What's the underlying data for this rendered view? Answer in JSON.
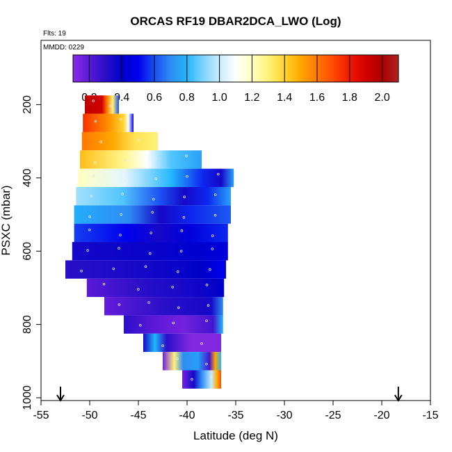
{
  "chart_data": {
    "type": "heatmap",
    "title": "ORCAS RF19 DBAR2DCA_LWO (Log)",
    "flights_label": "Flts: 19",
    "date_label": "MMDD: 0229",
    "xlabel": "Latitude (deg N)",
    "ylabel": "PSXC (mbar)",
    "xlim": [
      -55,
      -15
    ],
    "ylim": [
      1000,
      0
    ],
    "xticks": [
      -55,
      -50,
      -45,
      -40,
      -35,
      -30,
      -25,
      -20,
      -15
    ],
    "yticks": [
      200,
      400,
      600,
      800,
      1000
    ],
    "colorbar": {
      "vmin": 0.1,
      "vmax": 2.1,
      "ticks": [
        0.2,
        0.4,
        0.6,
        0.8,
        1.0,
        1.2,
        1.4,
        1.6,
        1.8,
        2.0
      ],
      "tick_labels": [
        "0.2",
        "0.4",
        "0.6",
        "0.8",
        "1.0",
        "1.2",
        "1.4",
        "1.6",
        "1.8",
        "2.0"
      ],
      "colors": [
        "#8a2be2",
        "#5b18d8",
        "#2a0fc8",
        "#0000c8",
        "#0000ee",
        "#1a4ef0",
        "#2e8cf4",
        "#22b6fb",
        "#7fd4fc",
        "#c8ecfc",
        "#ffffff",
        "#ffffc0",
        "#fff27a",
        "#ffd42e",
        "#ffa600",
        "#ff7800",
        "#ff4a00",
        "#f01800",
        "#d20000",
        "#aa0000",
        "#b22222"
      ]
    },
    "arrows_at_latitude": [
      -53,
      -18.3
    ],
    "rows": [
      {
        "pressure": 200,
        "lat_min": -50.5,
        "lat_max": -47.0,
        "stops": [
          [
            0,
            1.95
          ],
          [
            0.5,
            1.9
          ],
          [
            0.65,
            1.6
          ],
          [
            0.82,
            1.3
          ],
          [
            1,
            0.6
          ]
        ]
      },
      {
        "pressure": 250,
        "lat_min": -50.7,
        "lat_max": -45.5,
        "stops": [
          [
            0,
            1.75
          ],
          [
            0.5,
            1.55
          ],
          [
            0.8,
            1.4
          ],
          [
            0.9,
            1.1
          ],
          [
            1,
            0.5
          ]
        ]
      },
      {
        "pressure": 300,
        "lat_min": -50.8,
        "lat_max": -43.0,
        "stops": [
          [
            0,
            1.6
          ],
          [
            0.4,
            1.5
          ],
          [
            0.7,
            1.35
          ],
          [
            1,
            1.3
          ]
        ]
      },
      {
        "pressure": 350,
        "lat_min": -51.0,
        "lat_max": -38.5,
        "stops": [
          [
            0,
            1.45
          ],
          [
            0.35,
            1.28
          ],
          [
            0.55,
            1.1
          ],
          [
            0.75,
            0.85
          ],
          [
            1,
            0.75
          ]
        ]
      },
      {
        "pressure": 400,
        "lat_min": -51.2,
        "lat_max": -35.2,
        "stops": [
          [
            0,
            1.2
          ],
          [
            0.3,
            1.05
          ],
          [
            0.6,
            0.8
          ],
          [
            0.8,
            0.55
          ],
          [
            0.92,
            0.35
          ],
          [
            1,
            0.75
          ]
        ]
      },
      {
        "pressure": 450,
        "lat_min": -51.4,
        "lat_max": -35.5,
        "stops": [
          [
            0,
            0.95
          ],
          [
            0.3,
            0.85
          ],
          [
            0.55,
            0.6
          ],
          [
            0.7,
            0.35
          ],
          [
            0.85,
            0.55
          ],
          [
            1,
            0.75
          ]
        ]
      },
      {
        "pressure": 500,
        "lat_min": -51.6,
        "lat_max": -35.5,
        "stops": [
          [
            0,
            0.78
          ],
          [
            0.35,
            0.7
          ],
          [
            0.55,
            0.35
          ],
          [
            0.75,
            0.55
          ],
          [
            1,
            0.62
          ]
        ]
      },
      {
        "pressure": 550,
        "lat_min": -51.6,
        "lat_max": -35.8,
        "stops": [
          [
            0,
            0.58
          ],
          [
            0.35,
            0.5
          ],
          [
            0.55,
            0.35
          ],
          [
            0.75,
            0.45
          ],
          [
            1,
            0.55
          ]
        ]
      },
      {
        "pressure": 600,
        "lat_min": -51.8,
        "lat_max": -35.8,
        "stops": [
          [
            0,
            0.35
          ],
          [
            0.5,
            0.38
          ],
          [
            0.8,
            0.42
          ],
          [
            1,
            0.45
          ]
        ]
      },
      {
        "pressure": 650,
        "lat_min": -52.5,
        "lat_max": -36.0,
        "stops": [
          [
            0,
            0.3
          ],
          [
            0.5,
            0.35
          ],
          [
            0.85,
            0.4
          ],
          [
            1,
            0.5
          ]
        ]
      },
      {
        "pressure": 700,
        "lat_min": -50.3,
        "lat_max": -36.2,
        "stops": [
          [
            0,
            0.2
          ],
          [
            0.4,
            0.3
          ],
          [
            0.75,
            0.35
          ],
          [
            1,
            0.4
          ]
        ]
      },
      {
        "pressure": 750,
        "lat_min": -48.5,
        "lat_max": -36.3,
        "stops": [
          [
            0,
            0.18
          ],
          [
            0.5,
            0.3
          ],
          [
            0.9,
            0.35
          ],
          [
            1,
            0.7
          ]
        ]
      },
      {
        "pressure": 800,
        "lat_min": -46.5,
        "lat_max": -36.3,
        "stops": [
          [
            0,
            0.3
          ],
          [
            0.3,
            0.2
          ],
          [
            0.6,
            0.15
          ],
          [
            0.9,
            0.25
          ],
          [
            1,
            0.8
          ]
        ]
      },
      {
        "pressure": 850,
        "lat_min": -44.5,
        "lat_max": -36.5,
        "stops": [
          [
            0,
            0.35
          ],
          [
            0.15,
            0.8
          ],
          [
            0.3,
            0.3
          ],
          [
            0.6,
            0.12
          ],
          [
            1,
            0.12
          ]
        ]
      },
      {
        "pressure": 900,
        "lat_min": -42.5,
        "lat_max": -36.5,
        "stops": [
          [
            0,
            0.15
          ],
          [
            0.2,
            1.3
          ],
          [
            0.35,
            0.7
          ],
          [
            0.6,
            0.75
          ],
          [
            0.8,
            0.25
          ],
          [
            0.9,
            1.5
          ],
          [
            1,
            0.8
          ]
        ]
      },
      {
        "pressure": 950,
        "lat_min": -40.5,
        "lat_max": -36.5,
        "stops": [
          [
            0,
            0.15
          ],
          [
            0.3,
            0.35
          ],
          [
            0.5,
            0.7
          ],
          [
            0.75,
            1.0
          ],
          [
            0.9,
            1.5
          ],
          [
            1,
            1.7
          ]
        ]
      }
    ]
  }
}
